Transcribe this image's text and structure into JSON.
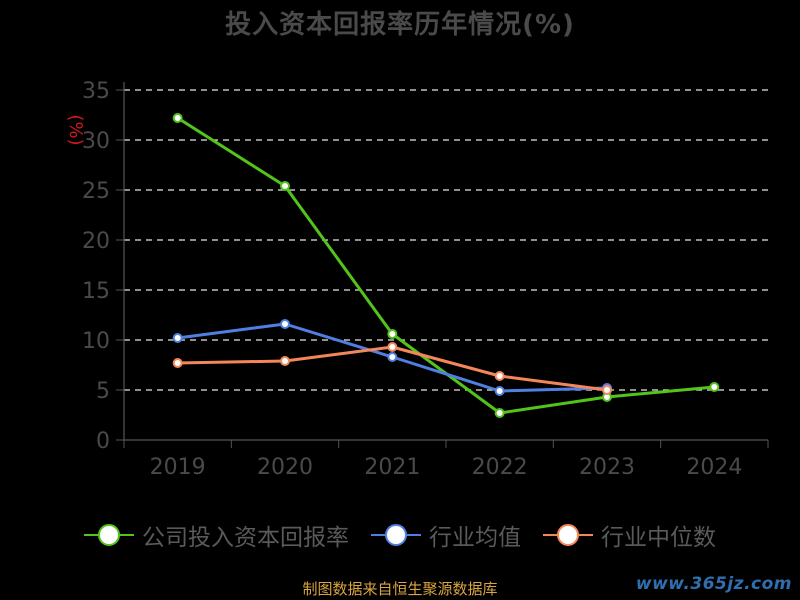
{
  "chart_data": {
    "type": "line",
    "title": "投入资本回报率历年情况(%)",
    "ylabel": "(%)",
    "xlabel": "",
    "categories": [
      "2019",
      "2020",
      "2021",
      "2022",
      "2023",
      "2024"
    ],
    "ylim": [
      0,
      35
    ],
    "yticks": [
      0,
      5,
      10,
      15,
      20,
      25,
      30,
      35
    ],
    "grid": true,
    "legend_position": "bottom",
    "series": [
      {
        "name": "公司投入资本回报率",
        "color": "#52c41a",
        "values": [
          32.2,
          25.4,
          10.6,
          2.7,
          4.3,
          5.3
        ]
      },
      {
        "name": "行业均值",
        "color": "#4f80e1",
        "values": [
          10.2,
          11.6,
          8.3,
          4.9,
          5.2,
          null
        ]
      },
      {
        "name": "行业中位数",
        "color": "#f4875a",
        "values": [
          7.7,
          7.9,
          9.3,
          6.4,
          5.0,
          null
        ]
      }
    ]
  },
  "footer": "制图数据来自恒生聚源数据库",
  "watermark": "www.365jz.com"
}
